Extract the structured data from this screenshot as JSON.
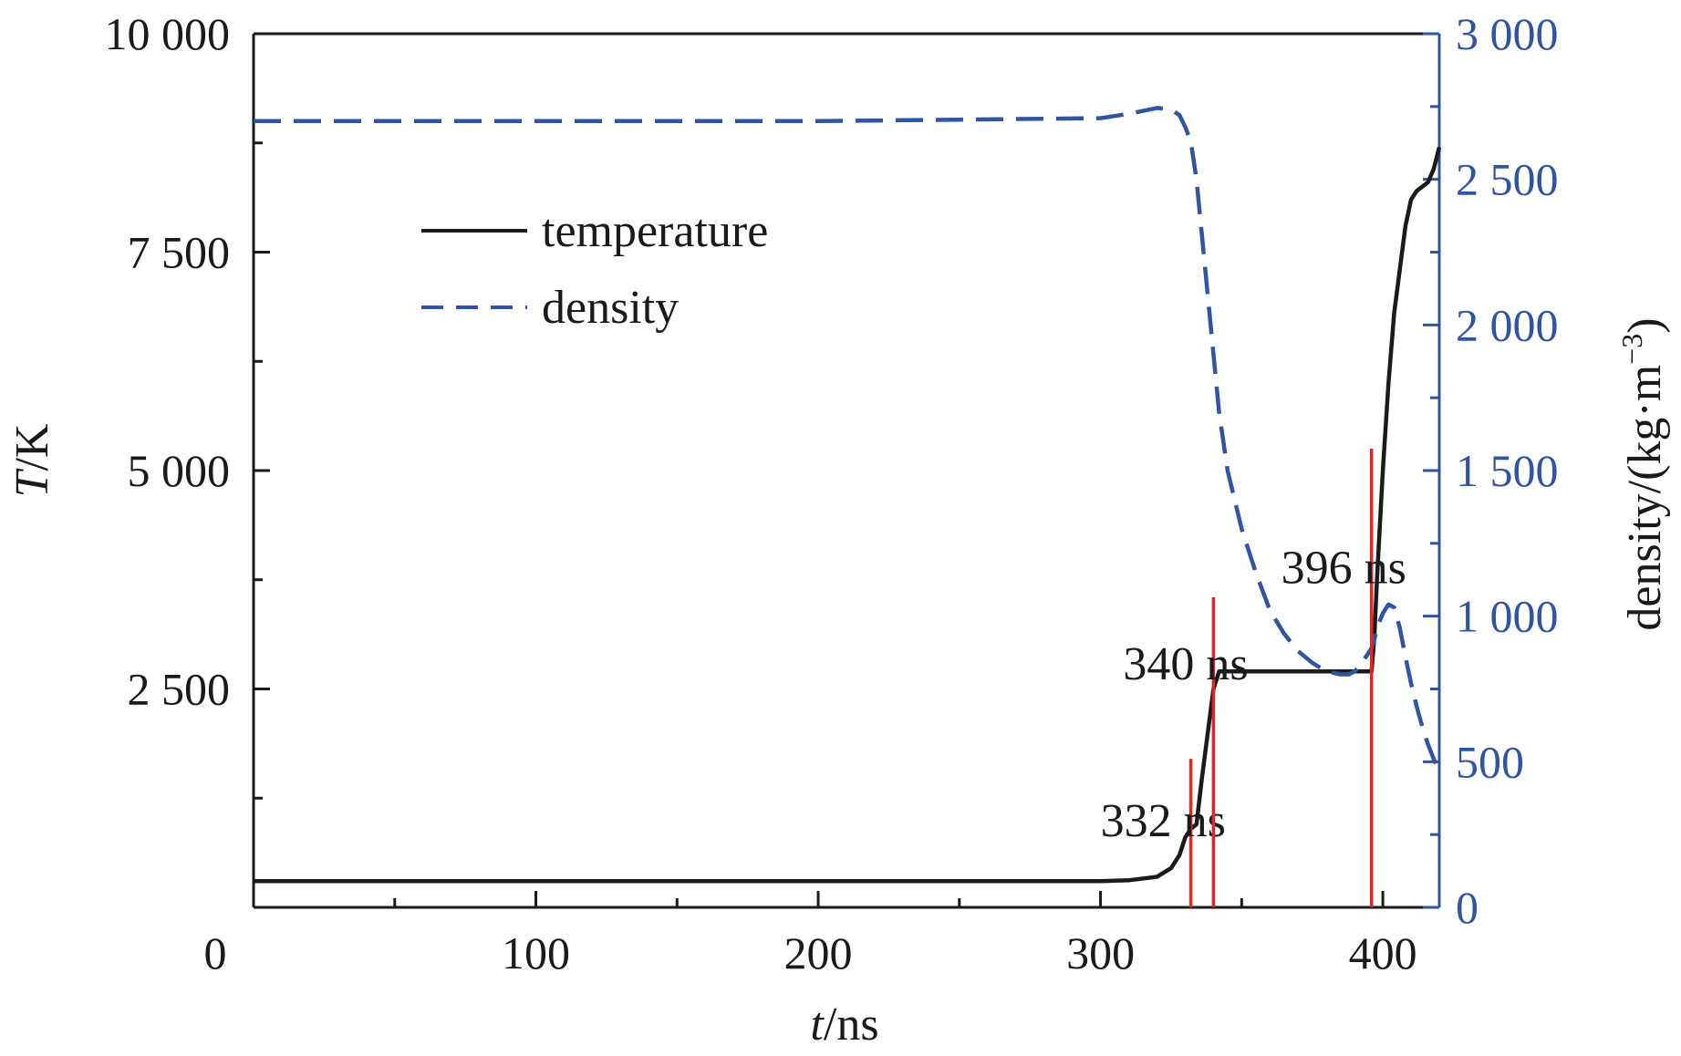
{
  "chart_data": {
    "type": "line",
    "x": [
      0,
      50,
      100,
      150,
      200,
      250,
      300,
      310,
      320,
      325,
      328,
      330,
      332,
      334,
      336,
      338,
      340,
      341,
      342,
      345,
      350,
      355,
      360,
      365,
      370,
      375,
      380,
      385,
      388,
      390,
      392,
      394,
      396,
      397,
      398,
      400,
      402,
      404,
      406,
      408,
      410,
      412,
      414,
      416,
      418,
      420
    ],
    "series": [
      {
        "name": "temperature",
        "axis": "left",
        "style": "solid",
        "color": "#1a1a1a",
        "values": [
          300,
          300,
          300,
          300,
          300,
          300,
          300,
          310,
          350,
          450,
          600,
          800,
          900,
          950,
          1500,
          2000,
          2500,
          2600,
          2700,
          2700,
          2700,
          2700,
          2700,
          2700,
          2700,
          2700,
          2700,
          2700,
          2700,
          2700,
          2700,
          2700,
          2700,
          3100,
          3800,
          5000,
          6000,
          6800,
          7300,
          7800,
          8100,
          8200,
          8250,
          8300,
          8450,
          8700
        ]
      },
      {
        "name": "density",
        "axis": "right",
        "style": "dashed",
        "color": "#2f54a3",
        "values": [
          2700,
          2700,
          2700,
          2700,
          2700,
          2705,
          2710,
          2725,
          2745,
          2740,
          2720,
          2680,
          2630,
          2500,
          2300,
          2100,
          1900,
          1800,
          1700,
          1500,
          1300,
          1150,
          1020,
          940,
          880,
          840,
          810,
          800,
          800,
          810,
          830,
          860,
          890,
          920,
          960,
          1010,
          1040,
          1030,
          960,
          860,
          770,
          690,
          620,
          560,
          510,
          470
        ]
      }
    ],
    "xlabel_var": "t",
    "xlabel_unit": "/ns",
    "ylabel_var": "T",
    "ylabel_unit": "/K",
    "y2label": "density/(kg·m",
    "y2label_sup": "−3",
    "y2label_close": ")",
    "xlim": [
      0,
      420
    ],
    "ylim": [
      0,
      10000
    ],
    "y2lim": [
      0,
      3000
    ],
    "xticks": [
      0,
      100,
      200,
      300,
      400
    ],
    "xtick_labels": [
      "0",
      "100",
      "200",
      "300",
      "400"
    ],
    "yticks": [
      2500,
      5000,
      7500,
      10000
    ],
    "ytick_labels": [
      "2 500",
      "5 000",
      "7 500",
      "10 000"
    ],
    "y2ticks": [
      0,
      500,
      1000,
      1500,
      2000,
      2500,
      3000
    ],
    "y2tick_labels": [
      "0",
      "500",
      "1 000",
      "1 500",
      "2 000",
      "2 500",
      "3 000"
    ],
    "grid": false,
    "legend_position": "top-left",
    "markers": [
      {
        "x": 332,
        "top": 1700,
        "label": "332 ns",
        "label_x": 300,
        "label_y": 1000
      },
      {
        "x": 340,
        "top": 3550,
        "label": "340 ns",
        "label_x": 308,
        "label_y": 2800
      },
      {
        "x": 396,
        "top": 5250,
        "label": "396 ns",
        "label_x": 364,
        "label_y": 3900
      }
    ],
    "marker_color": "#e0281f"
  }
}
